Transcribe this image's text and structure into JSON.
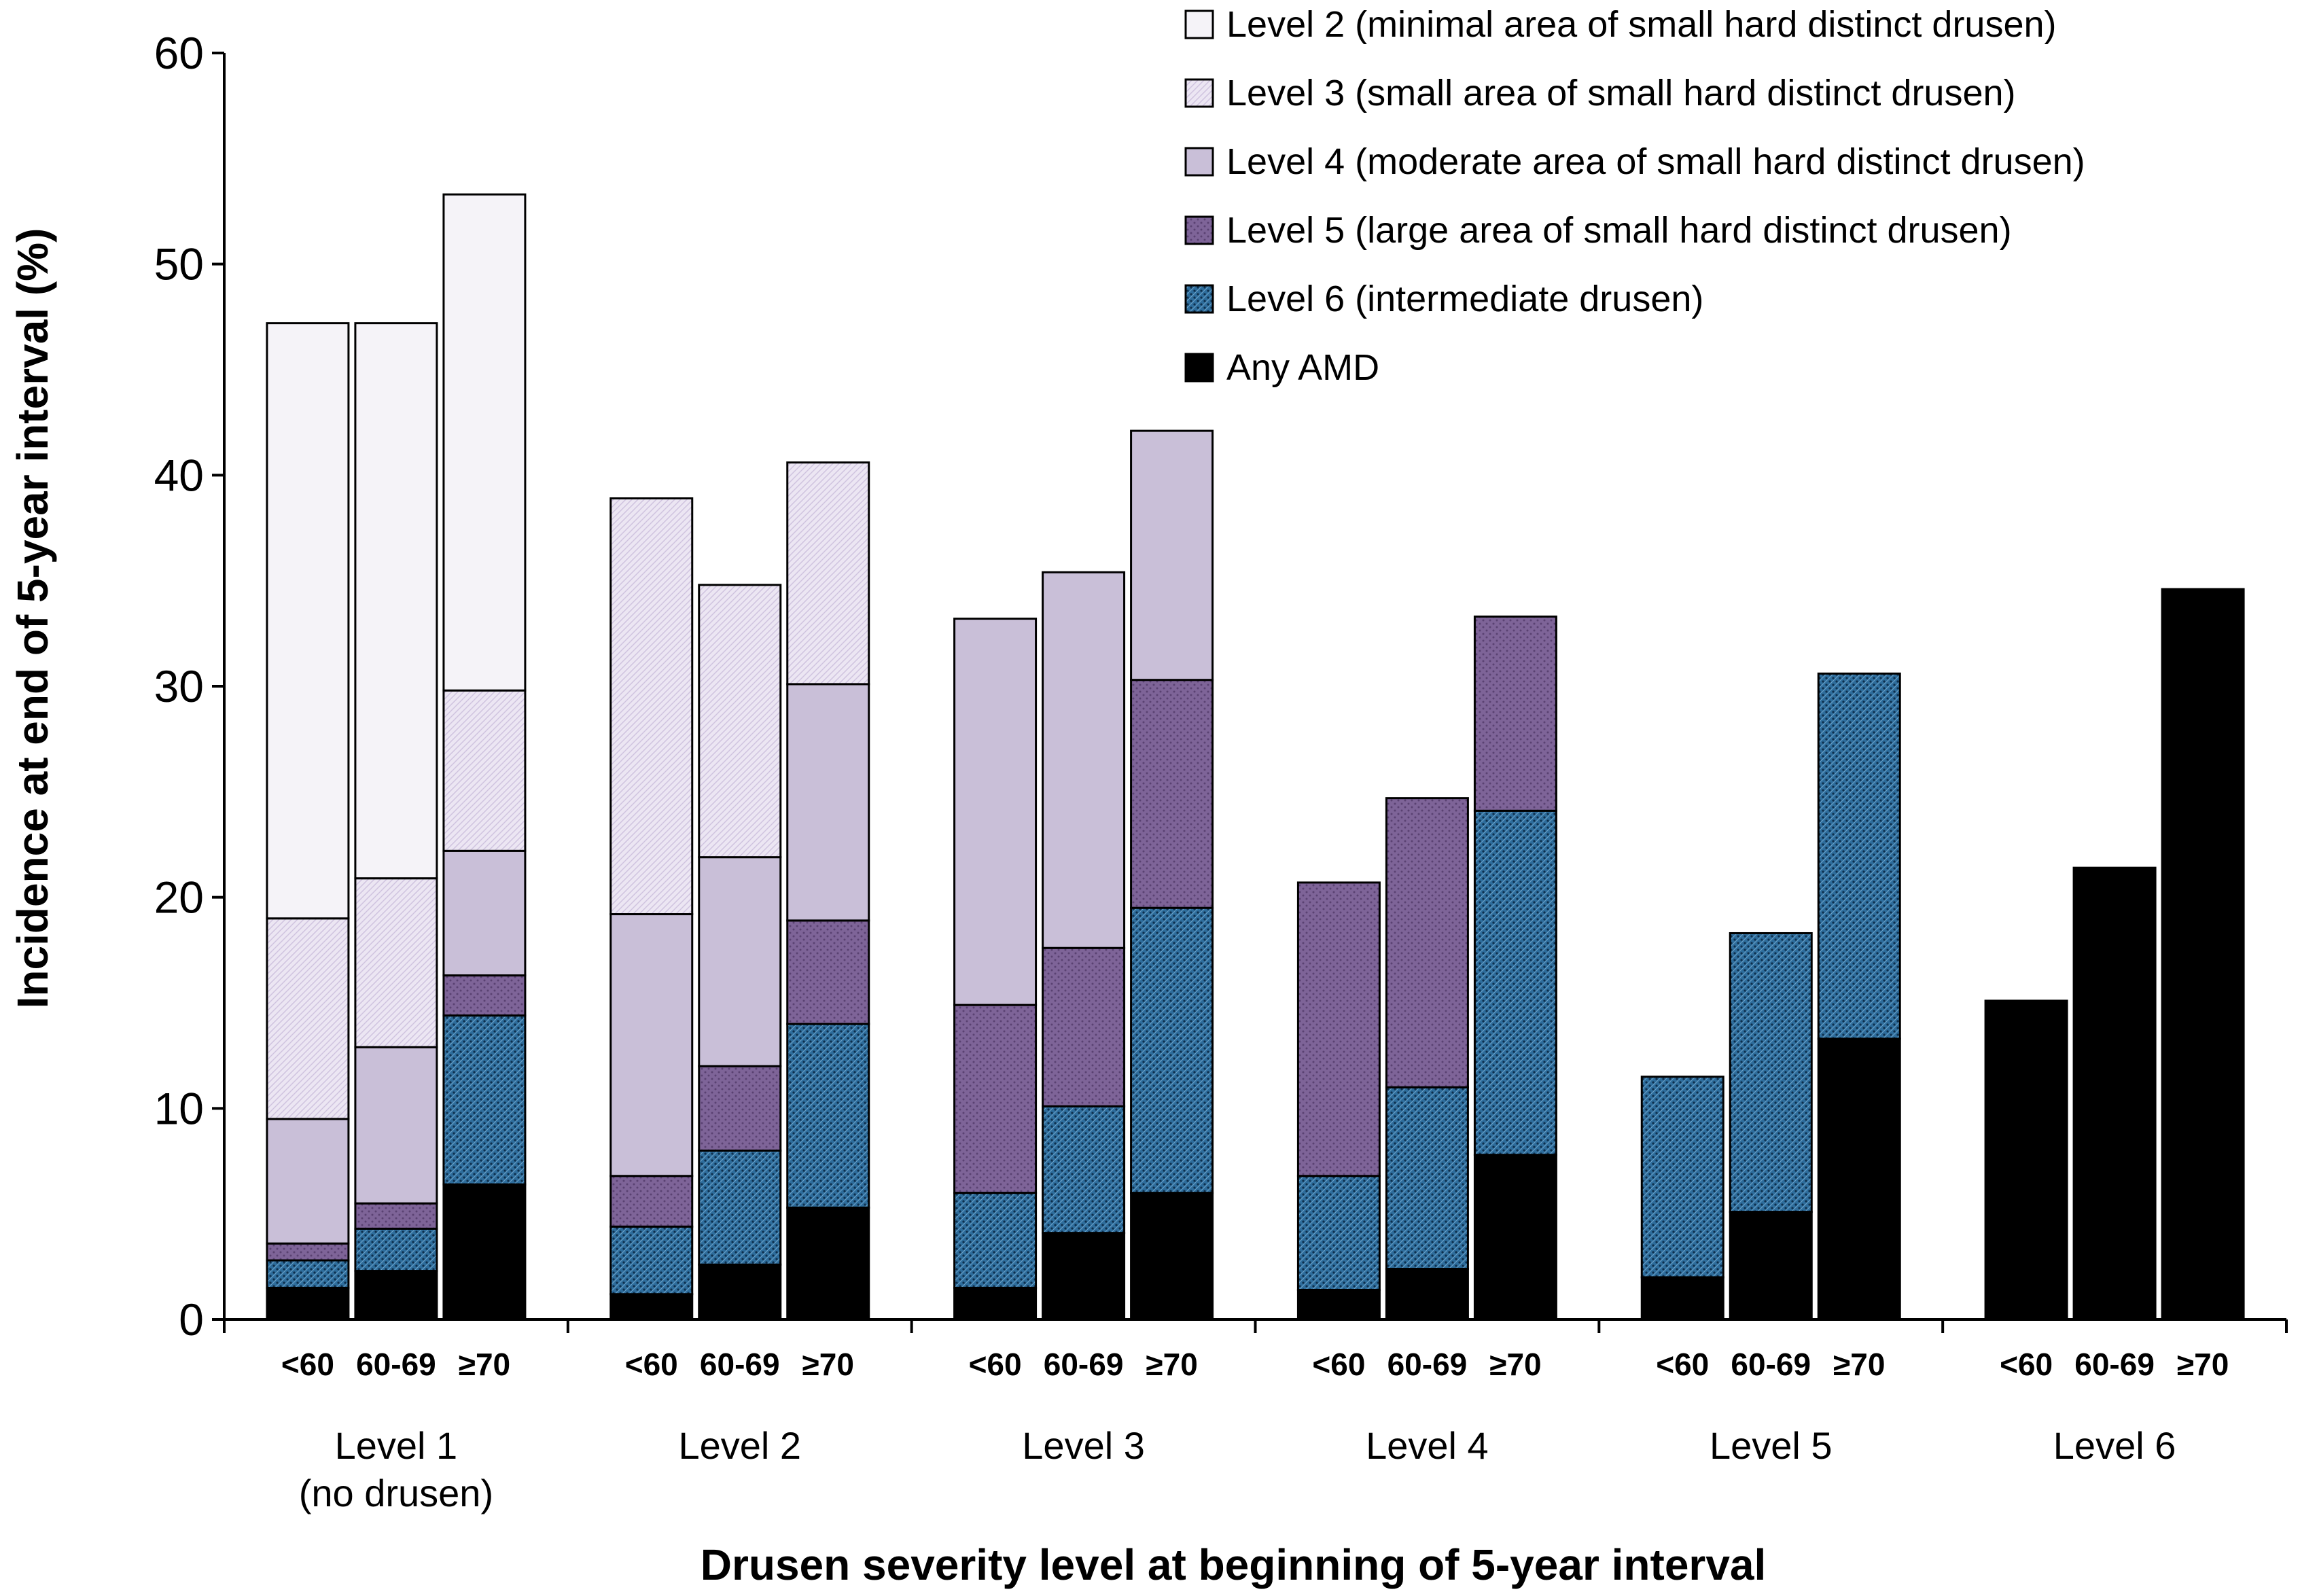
{
  "chart_data": {
    "type": "bar",
    "stacked": true,
    "xlabel": "Drusen severity level at beginning of 5-year interval",
    "ylabel": "Incidence at end of 5-year interval (%)",
    "ylim": [
      0,
      60
    ],
    "yticks": [
      "0",
      "10",
      "20",
      "30",
      "40",
      "50",
      "60"
    ],
    "groups": [
      {
        "label": "Level 1",
        "sublabel": "(no drusen)"
      },
      {
        "label": "Level 2",
        "sublabel": ""
      },
      {
        "label": "Level 3",
        "sublabel": ""
      },
      {
        "label": "Level 4",
        "sublabel": ""
      },
      {
        "label": "Level 5",
        "sublabel": ""
      },
      {
        "label": "Level 6",
        "sublabel": ""
      }
    ],
    "age_categories": [
      "<60",
      "60-69",
      "≥70"
    ],
    "series": [
      {
        "name": "Any AMD",
        "legend": "Any AMD",
        "color": "#000000",
        "pattern": "solid",
        "values": [
          [
            1.5,
            2.3,
            6.4
          ],
          [
            1.2,
            2.6,
            5.3
          ],
          [
            1.5,
            4.1,
            6.0
          ],
          [
            1.4,
            2.4,
            7.8
          ],
          [
            2.0,
            5.1,
            13.3
          ],
          [
            15.1,
            21.4,
            34.6
          ]
        ]
      },
      {
        "name": "Level 6",
        "legend": "Level 6 (intermediate drusen)",
        "color": "#2e6d9c",
        "pattern": "dots",
        "values": [
          [
            1.3,
            2.0,
            8.0
          ],
          [
            3.2,
            5.4,
            8.7
          ],
          [
            4.5,
            6.0,
            13.5
          ],
          [
            5.4,
            8.6,
            16.3
          ],
          [
            9.5,
            13.2,
            17.3
          ],
          [
            0,
            0,
            0
          ]
        ]
      },
      {
        "name": "Level 5",
        "legend": "Level 5 (large area of small hard distinct drusen)",
        "color": "#7e6498",
        "pattern": "dots",
        "values": [
          [
            0.8,
            1.2,
            1.9
          ],
          [
            2.4,
            4.0,
            4.9
          ],
          [
            8.9,
            7.5,
            10.8
          ],
          [
            13.9,
            13.7,
            9.2
          ],
          [
            0,
            0,
            0
          ],
          [
            0,
            0,
            0
          ]
        ]
      },
      {
        "name": "Level 4",
        "legend": "Level 4 (moderate area of small hard distinct drusen)",
        "color": "#c9bfd8",
        "pattern": "solid",
        "values": [
          [
            5.9,
            7.4,
            5.9
          ],
          [
            12.4,
            9.9,
            11.2
          ],
          [
            18.3,
            17.8,
            11.8
          ],
          [
            0,
            0,
            0
          ],
          [
            0,
            0,
            0
          ],
          [
            0,
            0,
            0
          ]
        ]
      },
      {
        "name": "Level 3",
        "legend": "Level 3 (small area of small hard distinct drusen)",
        "color": "#e9e2f1",
        "pattern": "hatch",
        "values": [
          [
            9.5,
            8.0,
            7.6
          ],
          [
            19.7,
            12.9,
            10.5
          ],
          [
            0,
            0,
            0
          ],
          [
            0,
            0,
            0
          ],
          [
            0,
            0,
            0
          ],
          [
            0,
            0,
            0
          ]
        ]
      },
      {
        "name": "Level 2",
        "legend": "Level 2 (minimal area of small hard distinct drusen)",
        "color": "#f5f3f8",
        "pattern": "solid",
        "values": [
          [
            28.2,
            26.3,
            23.5
          ],
          [
            0,
            0,
            0
          ],
          [
            0,
            0,
            0
          ],
          [
            0,
            0,
            0
          ],
          [
            0,
            0,
            0
          ],
          [
            0,
            0,
            0
          ]
        ]
      }
    ],
    "legend_order": [
      "Level 2",
      "Level 3",
      "Level 4",
      "Level 5",
      "Level 6",
      "Any AMD"
    ],
    "legend_position": "top-right"
  }
}
